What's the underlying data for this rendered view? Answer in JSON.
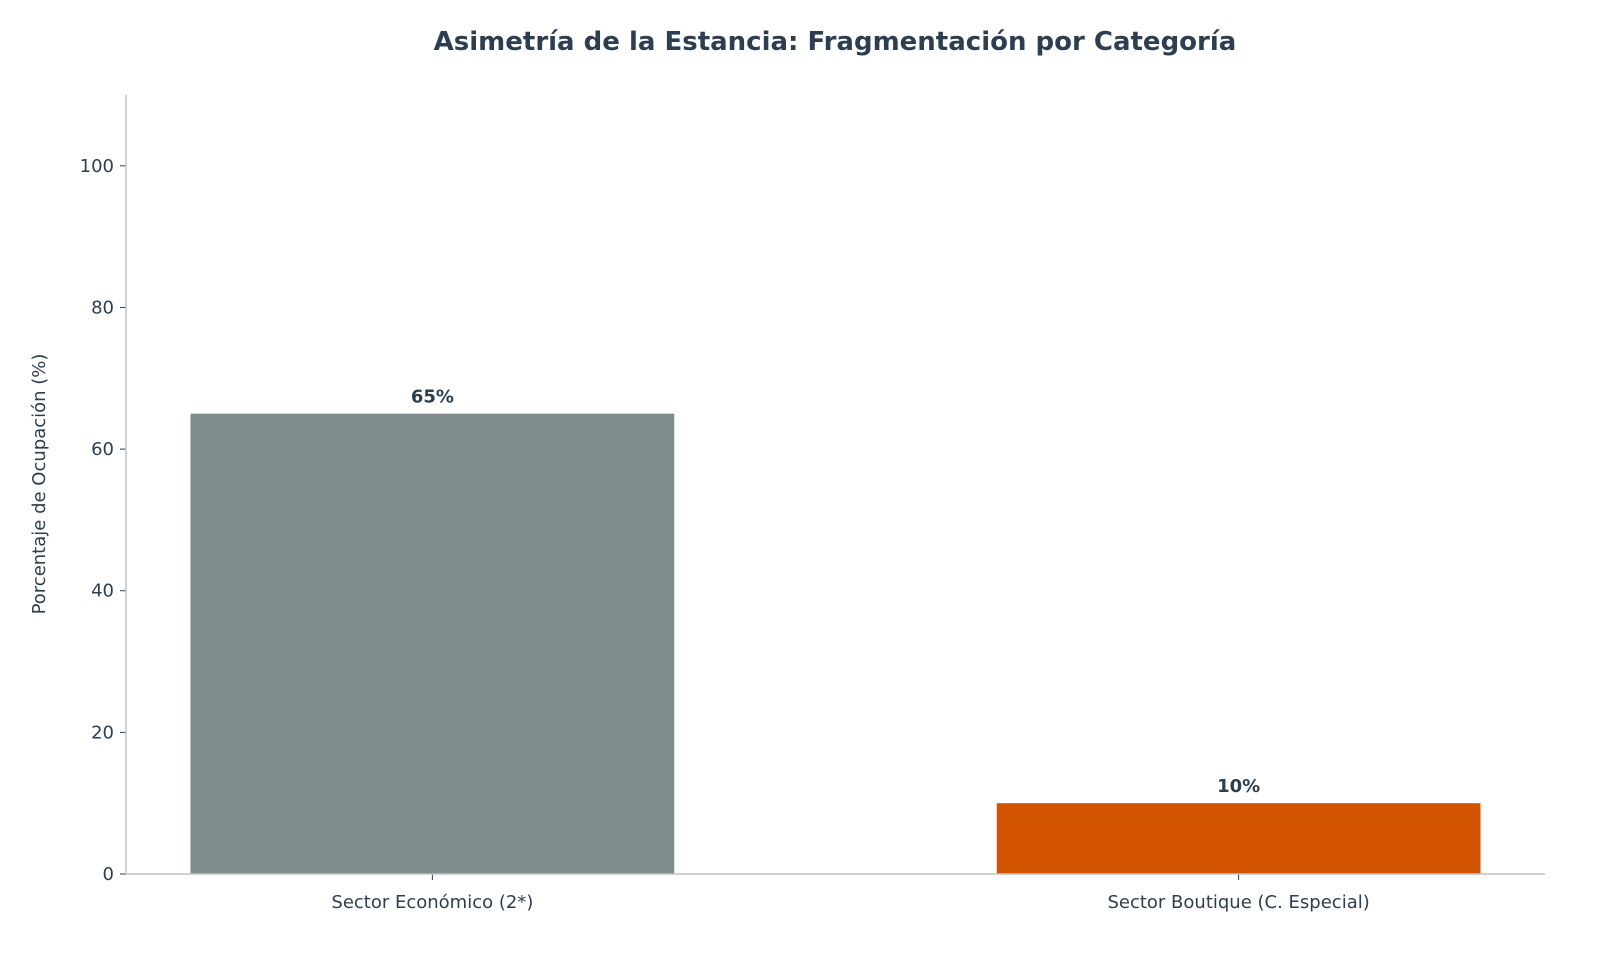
{
  "chart_data": {
    "type": "bar",
    "title": "Asimetría de la Estancia: Fragmentación por Categoría",
    "xlabel": "",
    "ylabel": "Porcentaje de Ocupación (%)",
    "categories": [
      "Sector Económico (2*)",
      "Sector Boutique (C. Especial)"
    ],
    "values": [
      65,
      10
    ],
    "data_labels": [
      "65%",
      "10%"
    ],
    "colors": [
      "#7f8c8d",
      "#d35400"
    ],
    "ylim": [
      0,
      110
    ],
    "yticks": [
      0,
      20,
      40,
      60,
      80,
      100
    ],
    "grid": false,
    "text_color": "#2c3e50",
    "axis_color": "#bdc3c7"
  }
}
